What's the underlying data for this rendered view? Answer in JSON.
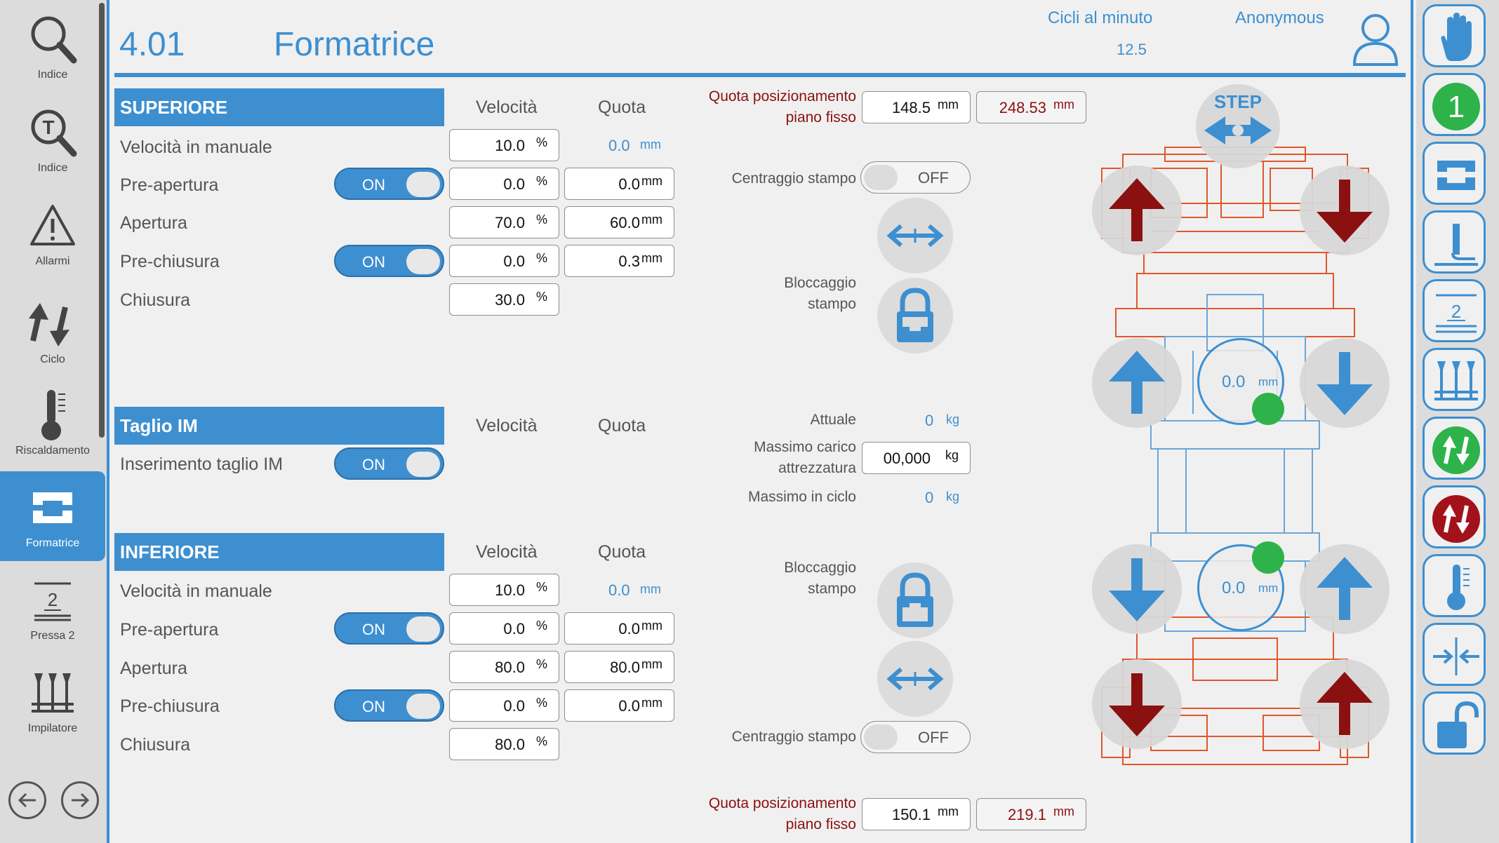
{
  "header": {
    "number": "4.01",
    "title": "Formatrice",
    "cycles_label": "Cicli al minuto",
    "cycles_value": "12.5",
    "user": "Anonymous"
  },
  "sidebar": {
    "items": [
      {
        "label": "Indice",
        "icon": "search-icon"
      },
      {
        "label": "Indice",
        "icon": "text-search-icon"
      },
      {
        "label": "Allarmi",
        "icon": "warning-icon"
      },
      {
        "label": "Ciclo",
        "icon": "cycle-icon"
      },
      {
        "label": "Riscaldamento",
        "icon": "thermometer-icon"
      },
      {
        "label": "Formatrice",
        "icon": "former-icon",
        "active": true
      },
      {
        "label": "Pressa 2",
        "icon": "press2-icon"
      },
      {
        "label": "Impilatore",
        "icon": "stacker-icon"
      }
    ]
  },
  "columns": {
    "speed": "Velocità",
    "position": "Quota"
  },
  "units": {
    "percent": "%",
    "mm": "mm",
    "kg": "kg"
  },
  "toggle": {
    "on": "ON",
    "off": "OFF"
  },
  "upper": {
    "title": "SUPERIORE",
    "manual_speed": {
      "label": "Velocità in manuale",
      "speed": "10.0",
      "position": "0.0"
    },
    "pre_open": {
      "label": "Pre-apertura",
      "speed": "0.0",
      "position": "0.0"
    },
    "open": {
      "label": "Apertura",
      "speed": "70.0",
      "position": "60.0"
    },
    "pre_close": {
      "label": "Pre-chiusura",
      "speed": "0.0",
      "position": "0.3"
    },
    "close": {
      "label": "Chiusura",
      "speed": "30.0"
    }
  },
  "cut": {
    "title": "Taglio IM",
    "insert_label": "Inserimento taglio IM"
  },
  "lower": {
    "title": "INFERIORE",
    "manual_speed": {
      "label": "Velocità in manuale",
      "speed": "10.0",
      "position": "0.0"
    },
    "pre_open": {
      "label": "Pre-apertura",
      "speed": "0.0",
      "position": "0.0"
    },
    "open": {
      "label": "Apertura",
      "speed": "80.0",
      "position": "80.0"
    },
    "pre_close": {
      "label": "Pre-chiusura",
      "speed": "0.0",
      "position": "0.0"
    },
    "close": {
      "label": "Chiusura",
      "speed": "80.0"
    }
  },
  "middle": {
    "top_position": {
      "label1": "Quota posizionamento",
      "label2": "piano fisso",
      "value": "148.5",
      "actual": "248.53"
    },
    "centering_top": "Centraggio stampo",
    "lock_top": {
      "label1": "Bloccaggio",
      "label2": "stampo"
    },
    "actual": {
      "label": "Attuale",
      "value": "0"
    },
    "max_load": {
      "label1": "Massimo carico",
      "label2": "attrezzatura",
      "value": "00,000"
    },
    "max_cycle": {
      "label": "Massimo in ciclo",
      "value": "0"
    },
    "lock_bottom": {
      "label1": "Bloccaggio",
      "label2": "stampo"
    },
    "centering_bottom": "Centraggio stampo",
    "bottom_position": {
      "label1": "Quota posizionamento",
      "label2": "piano fisso",
      "value": "150.1",
      "actual": "219.1"
    }
  },
  "diagram": {
    "step_label": "STEP",
    "upper_pos": "0.0",
    "lower_pos": "0.0"
  },
  "rightbar": {
    "button_2_label": "1",
    "button_5_label": "2"
  },
  "colors": {
    "accent": "#3d8fd0",
    "dark_red": "#8b1010",
    "green": "#2db34a",
    "machine_red": "#e0572a"
  }
}
